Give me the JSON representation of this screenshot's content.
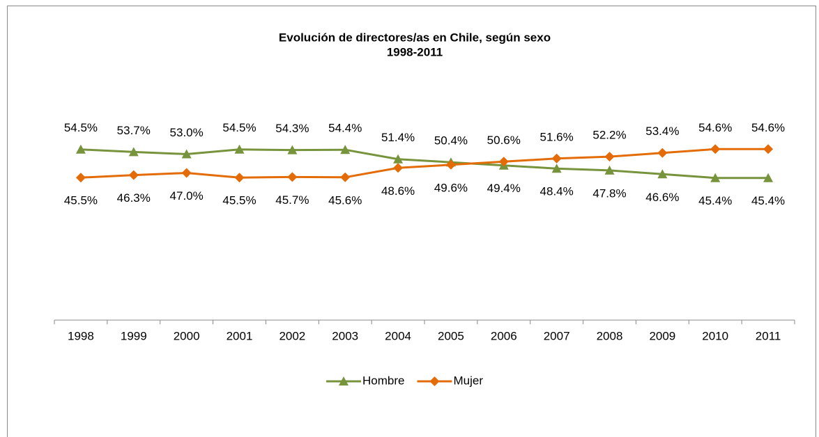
{
  "chart_data": {
    "type": "line",
    "title": "Evolución de directores/as en Chile, según sexo",
    "subtitle": "1998-2011",
    "categories": [
      "1998",
      "1999",
      "2000",
      "2001",
      "2002",
      "2003",
      "2004",
      "2005",
      "2006",
      "2007",
      "2008",
      "2009",
      "2010",
      "2011"
    ],
    "ylim": [
      0,
      60
    ],
    "legend": "bottom",
    "series": [
      {
        "name": "Hombre",
        "color": "#77933c",
        "marker": "triangle",
        "values": [
          54.5,
          53.7,
          53.0,
          54.5,
          54.3,
          54.4,
          51.4,
          50.4,
          49.4,
          48.4,
          47.8,
          46.6,
          45.4,
          45.4
        ],
        "value_labels": [
          "54.5%",
          "53.7%",
          "53.0%",
          "54.5%",
          "54.3%",
          "54.4%",
          "51.4%",
          "50.4%",
          "49.4%",
          "48.4%",
          "47.8%",
          "46.6%",
          "45.4%",
          "45.4%"
        ]
      },
      {
        "name": "Mujer",
        "color": "#e36c09",
        "marker": "diamond",
        "values": [
          45.5,
          46.3,
          47.0,
          45.5,
          45.7,
          45.6,
          48.6,
          49.6,
          50.6,
          51.6,
          52.2,
          53.4,
          54.6,
          54.6
        ],
        "value_labels": [
          "45.5%",
          "46.3%",
          "47.0%",
          "45.5%",
          "45.7%",
          "45.6%",
          "48.6%",
          "49.6%",
          "50.6%",
          "51.6%",
          "52.2%",
          "53.4%",
          "54.6%",
          "54.6%"
        ]
      }
    ]
  }
}
